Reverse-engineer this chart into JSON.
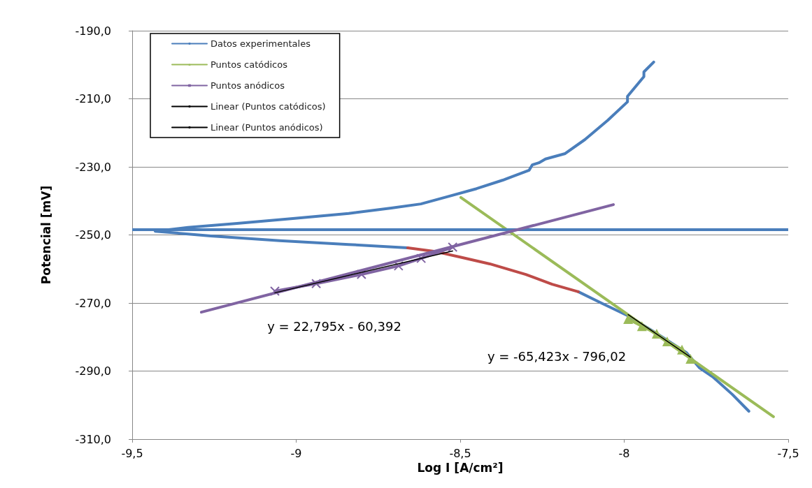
{
  "chart_data": {
    "type": "line",
    "xlabel": "Log I [A/cm²]",
    "ylabel": "Potencial [mV]",
    "xlim": [
      -9.5,
      -7.5
    ],
    "xticks": [
      {
        "value": -9.5,
        "label": "-9,5"
      },
      -9,
      {
        "value": -8.5,
        "label": "-8,5"
      },
      -8,
      {
        "value": -7.5,
        "label": "-7,5"
      }
    ],
    "ylim": [
      -310,
      -190
    ],
    "yticks": [
      {
        "value": -310,
        "label": "-310,0"
      },
      {
        "value": -290,
        "label": "-290,0"
      },
      {
        "value": -270,
        "label": "-270,0"
      },
      {
        "value": -250,
        "label": "-250,0"
      },
      {
        "value": -230,
        "label": "-230,0"
      },
      {
        "value": -210,
        "label": "-210,0"
      },
      {
        "value": -190,
        "label": "-190,0"
      }
    ],
    "grid": "y",
    "legend": "top left",
    "marker": "none",
    "line_style": "solid",
    "series": [
      {
        "name": "Datos experimentales",
        "color": "#4a7ebb",
        "x": [
          -7.91,
          -7.94,
          -7.94,
          -7.99,
          -7.99,
          -8.05,
          -8.12,
          -8.18,
          -8.24,
          -8.26,
          -8.28,
          -8.29,
          -8.37,
          -8.45,
          -8.54,
          -8.62,
          -8.71,
          -8.84,
          -9.01,
          -9.18,
          -9.33,
          -9.43,
          -9.26,
          -9.05,
          -8.84,
          -8.66,
          -8.58,
          -8.5,
          -8.41,
          -8.3,
          -8.22,
          -8.14,
          -8.07,
          -7.99,
          -7.9,
          -7.81,
          -7.77,
          -7.73,
          -7.67,
          -7.62
        ],
        "values": [
          -199.2,
          -202.1,
          -203.5,
          -209.3,
          -210.9,
          -216.3,
          -222.0,
          -226.1,
          -227.7,
          -228.8,
          -229.4,
          -231.0,
          -233.9,
          -236.4,
          -238.8,
          -240.9,
          -242.1,
          -243.7,
          -245.2,
          -246.6,
          -247.8,
          -248.9,
          -250.3,
          -251.7,
          -252.8,
          -253.8,
          null,
          null,
          null,
          null,
          null,
          -266.7,
          -270.0,
          -273.7,
          -279.0,
          -284.6,
          -289.1,
          -291.7,
          -296.9,
          -301.8
        ]
      },
      {
        "color": "#be4b48",
        "x": [
          -8.66,
          -8.58,
          -8.5,
          -8.41,
          -8.3,
          -8.22,
          -8.14
        ],
        "values": [
          -253.8,
          -254.8,
          -256.5,
          -258.5,
          -261.6,
          -264.5,
          -266.7
        ]
      },
      {
        "color": "#9bbb59",
        "x": [
          -8.498,
          -7.545
        ],
        "values": [
          -239.0,
          -303.4
        ]
      },
      {
        "color": "#8064a2",
        "x": [
          -9.289,
          -8.033
        ],
        "values": [
          -272.7,
          -241.1
        ]
      },
      {
        "name": "Puntos catódicos",
        "color": "#9bbb59",
        "marker": "triangle",
        "x": [
          -7.988,
          -7.946,
          -7.901,
          -7.869,
          -7.824,
          -7.798
        ],
        "values": [
          -274.7,
          -276.8,
          -279.0,
          -281.3,
          -283.7,
          -286.4
        ]
      },
      {
        "name": "Puntos anódicos",
        "color": "#8064a2",
        "marker": "cross",
        "x": [
          -9.065,
          -8.939,
          -8.801,
          -8.688,
          -8.619,
          -8.523
        ],
        "values": [
          -266.5,
          -264.3,
          -261.6,
          -259.1,
          -256.9,
          -253.6
        ]
      },
      {
        "name": "Linear (Puntos catódicos)",
        "color": "#000000",
        "x": [
          -7.988,
          -7.798
        ],
        "values": [
          -273.4,
          -285.9
        ]
      },
      {
        "name": "Linear (Puntos anódicos)",
        "color": "#000000",
        "x": [
          -9.065,
          -8.523
        ],
        "values": [
          -267.0,
          -254.7
        ]
      }
    ],
    "ref_lines": [
      {
        "axis": "y",
        "value": -248.5,
        "color": "#4a7ebb"
      }
    ],
    "annotations": [
      "y = 22,795x - 60,392",
      "y = -65,423x - 796,02"
    ]
  }
}
